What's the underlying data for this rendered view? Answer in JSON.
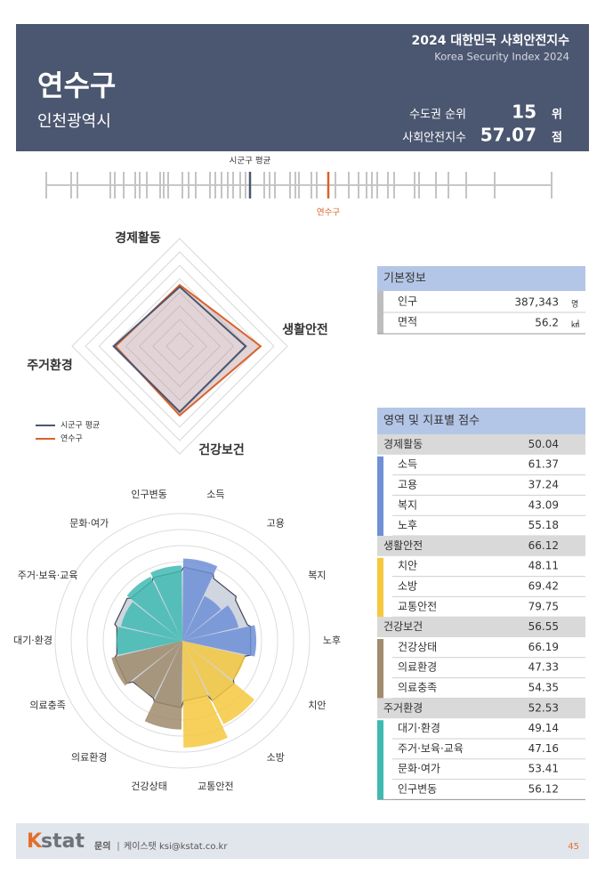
{
  "header": {
    "report_title": "2024 대한민국 사회안전지수",
    "report_subtitle": "Korea Security Index 2024",
    "title": "연수구",
    "subtitle": "인천광역시",
    "rank_label": "수도권 순위",
    "rank": 15,
    "rank_unit": "위",
    "score_label": "사회안전지수",
    "score": 57.07,
    "score_unit": "점"
  },
  "strip": {
    "average_label": "시군구 평균",
    "highlight_label": "연수구",
    "xlim": [
      41.22,
      69.62
    ],
    "average": 52.67,
    "average_color": "#4a5670",
    "highlight_color": "#d9622b",
    "values": [
      41.22,
      42.62,
      42.97,
      44.82,
      45.07,
      45.57,
      46.22,
      46.47,
      46.87,
      47.62,
      47.82,
      48.07,
      48.87,
      49.22,
      49.62,
      50.42,
      50.72,
      51.07,
      51.42,
      51.72,
      52.12,
      52.42,
      53.47,
      53.77,
      54.07,
      54.92,
      55.22,
      55.42,
      56.12,
      56.42,
      57.47,
      58.22,
      58.77,
      59.22,
      59.52,
      59.82,
      60.42,
      60.77,
      61.92,
      62.17,
      63.12,
      63.82,
      64.82,
      66.42,
      69.62
    ]
  },
  "radar": {
    "type": "radar",
    "axes": [
      "경제활동",
      "생활안전",
      "건강보건",
      "주거환경"
    ],
    "rlim": [
      0,
      88
    ],
    "series": [
      {
        "name": "시군구 평균",
        "color": "#4a5670",
        "values": [
          48.5,
          53.9,
          53.6,
          54.0
        ]
      },
      {
        "name": "연수구",
        "color": "#d9622b",
        "values": [
          50.04,
          66.12,
          56.55,
          52.53
        ]
      }
    ]
  },
  "polar": {
    "type": "polar-bar",
    "rlim": [
      0,
      95
    ],
    "average_color": "#cfd6e0",
    "average_values": [
      55,
      52,
      50,
      52,
      48,
      50,
      45,
      50,
      48,
      52,
      50,
      52,
      50,
      52
    ]
  },
  "basic_info": {
    "title": "기본정보",
    "rows": [
      {
        "label": "인구",
        "value": "387,343",
        "unit": "명"
      },
      {
        "label": "면적",
        "value": 56.2,
        "unit": "㎢"
      }
    ]
  },
  "scores": {
    "title": "영역 및 지표별 점수",
    "groups": [
      {
        "name": "경제활동",
        "score": 50.04,
        "color": "#6f8fd6",
        "items": [
          {
            "name": "소득",
            "score": 61.37
          },
          {
            "name": "고용",
            "score": 37.24
          },
          {
            "name": "복지",
            "score": 43.09
          },
          {
            "name": "노후",
            "score": 55.18
          }
        ]
      },
      {
        "name": "생활안전",
        "score": 66.12,
        "color": "#f5c83e",
        "items": [
          {
            "name": "치안",
            "score": 48.11
          },
          {
            "name": "소방",
            "score": 69.42
          },
          {
            "name": "교통안전",
            "score": 79.75
          }
        ]
      },
      {
        "name": "건강보건",
        "score": 56.55,
        "color": "#a08b6c",
        "items": [
          {
            "name": "건강상태",
            "score": 66.19
          },
          {
            "name": "의료환경",
            "score": 47.33
          },
          {
            "name": "의료충족",
            "score": 54.35
          }
        ]
      },
      {
        "name": "주거환경",
        "score": 52.53,
        "color": "#3fbab1",
        "items": [
          {
            "name": "대기·환경",
            "score": 49.14
          },
          {
            "name": "주거·보육·교육",
            "score": 47.16
          },
          {
            "name": "문화·여가",
            "score": 53.41
          },
          {
            "name": "인구변동",
            "score": 56.12
          }
        ]
      }
    ]
  },
  "footer": {
    "logo_k": "K",
    "logo_rest": "stat",
    "contact_label": "문의",
    "contact": "케이스탯 ksi@kstat.co.kr",
    "page": 45
  }
}
